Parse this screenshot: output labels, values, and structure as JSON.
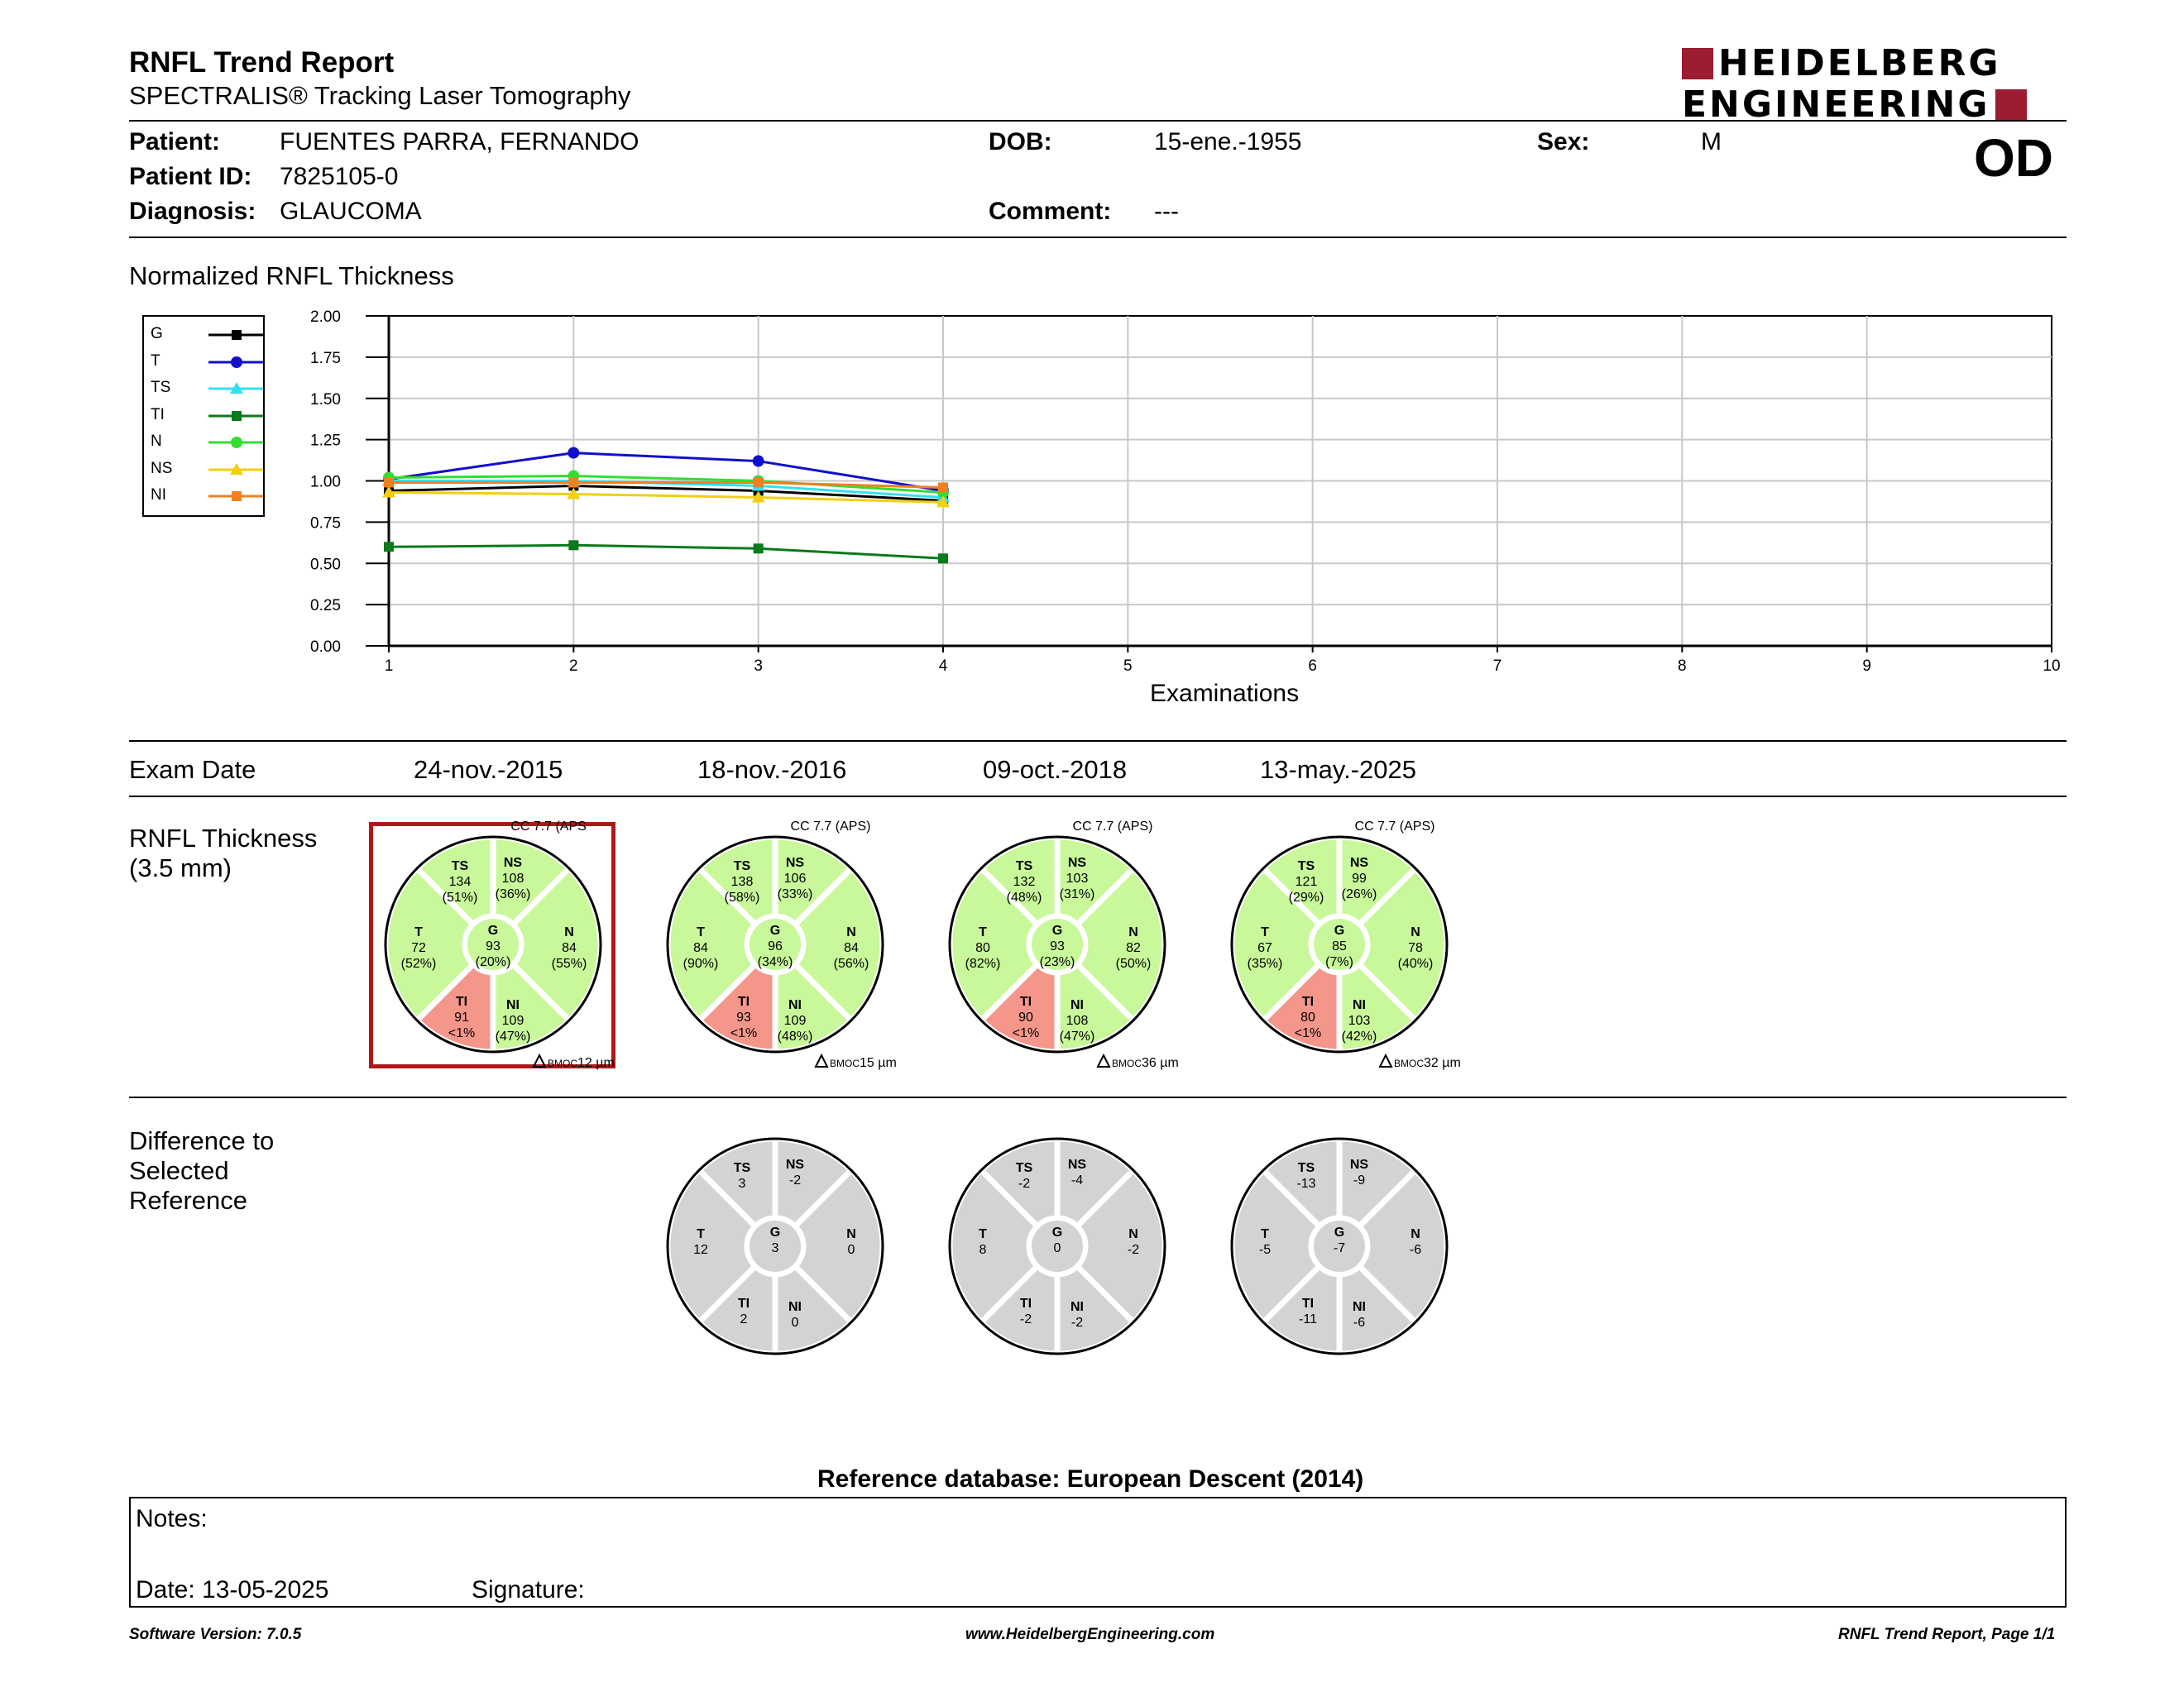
{
  "header": {
    "title": "RNFL Trend Report",
    "subtitle": "SPECTRALIS® Tracking Laser Tomography",
    "logo_line1": "HEIDELBERG",
    "logo_line2": "ENGINEERING",
    "eye": "OD"
  },
  "patient": {
    "patient_label": "Patient:",
    "patient_value": "FUENTES PARRA, FERNANDO",
    "id_label": "Patient ID:",
    "id_value": "7825105-0",
    "diagnosis_label": "Diagnosis:",
    "diagnosis_value": "GLAUCOMA",
    "dob_label": "DOB:",
    "dob_value": "15-ene.-1955",
    "comment_label": "Comment:",
    "comment_value": "---",
    "sex_label": "Sex:",
    "sex_value": "M"
  },
  "chart_section_title": "Normalized RNFL Thickness",
  "chart_data": {
    "type": "line",
    "xlabel": "Examinations",
    "x_ticks": [
      1,
      2,
      3,
      4,
      5,
      6,
      7,
      8,
      9,
      10
    ],
    "y_ticks": [
      "0.00",
      "0.25",
      "0.50",
      "0.75",
      "1.00",
      "1.25",
      "1.50",
      "1.75",
      "2.00"
    ],
    "xlim": [
      1,
      10
    ],
    "ylim": [
      0,
      2
    ],
    "grid": true,
    "legend_position": "left",
    "x": [
      1,
      2,
      3,
      4
    ],
    "series": [
      {
        "name": "G",
        "color": "#000000",
        "marker": "square",
        "values": [
          0.94,
          0.97,
          0.94,
          0.88
        ]
      },
      {
        "name": "T",
        "color": "#1010cc",
        "marker": "circle",
        "values": [
          1.01,
          1.17,
          1.12,
          0.94
        ]
      },
      {
        "name": "TS",
        "color": "#33e0f0",
        "marker": "triangle",
        "values": [
          1.0,
          1.0,
          0.97,
          0.9
        ]
      },
      {
        "name": "TI",
        "color": "#0a7a1a",
        "marker": "square",
        "values": [
          0.6,
          0.61,
          0.59,
          0.53
        ]
      },
      {
        "name": "N",
        "color": "#33dd33",
        "marker": "circle",
        "values": [
          1.02,
          1.03,
          1.0,
          0.93
        ]
      },
      {
        "name": "NS",
        "color": "#f0d010",
        "marker": "triangle",
        "values": [
          0.93,
          0.92,
          0.9,
          0.87
        ]
      },
      {
        "name": "NI",
        "color": "#f08020",
        "marker": "square",
        "values": [
          0.99,
          0.99,
          0.99,
          0.96
        ]
      }
    ]
  },
  "exam_date_label": "Exam Date",
  "exam_dates": [
    "24-nov.-2015",
    "18-nov.-2016",
    "09-oct.-2018",
    "13-may.-2025"
  ],
  "rnfl_label_line1": "RNFL Thickness",
  "rnfl_label_line2": "(3.5 mm)",
  "diff_label_line1": "Difference to",
  "diff_label_line2": "Selected",
  "diff_label_line3": "Reference",
  "colors": {
    "normal": "#c8f89a",
    "abnormal": "#f5968a",
    "difference": "#d3d3d3",
    "selected_border": "#b01818"
  },
  "selected_exam_index": 0,
  "thickness": [
    {
      "cc": "CC 7.7 (APS",
      "bmo_value": "12 µm",
      "TS": [
        "134",
        "(51%)"
      ],
      "NS": [
        "108",
        "(36%)"
      ],
      "T": [
        "72",
        "(52%)"
      ],
      "G": [
        "93",
        "(20%)"
      ],
      "N": [
        "84",
        "(55%)"
      ],
      "TI": [
        "91",
        "<1%"
      ],
      "NI": [
        "109",
        "(47%)"
      ]
    },
    {
      "cc": "CC 7.7 (APS)",
      "bmo_value": "15 µm",
      "TS": [
        "138",
        "(58%)"
      ],
      "NS": [
        "106",
        "(33%)"
      ],
      "T": [
        "84",
        "(90%)"
      ],
      "G": [
        "96",
        "(34%)"
      ],
      "N": [
        "84",
        "(56%)"
      ],
      "TI": [
        "93",
        "<1%"
      ],
      "NI": [
        "109",
        "(48%)"
      ]
    },
    {
      "cc": "CC 7.7 (APS)",
      "bmo_value": "36 µm",
      "TS": [
        "132",
        "(48%)"
      ],
      "NS": [
        "103",
        "(31%)"
      ],
      "T": [
        "80",
        "(82%)"
      ],
      "G": [
        "93",
        "(23%)"
      ],
      "N": [
        "82",
        "(50%)"
      ],
      "TI": [
        "90",
        "<1%"
      ],
      "NI": [
        "108",
        "(47%)"
      ]
    },
    {
      "cc": "CC 7.7 (APS)",
      "bmo_value": "32 µm",
      "TS": [
        "121",
        "(29%)"
      ],
      "NS": [
        "99",
        "(26%)"
      ],
      "T": [
        "67",
        "(35%)"
      ],
      "G": [
        "85",
        "(7%)"
      ],
      "N": [
        "78",
        "(40%)"
      ],
      "TI": [
        "80",
        "<1%"
      ],
      "NI": [
        "103",
        "(42%)"
      ]
    }
  ],
  "bmo_prefix": "BMOC",
  "differences": [
    null,
    {
      "TS": "3",
      "NS": "-2",
      "T": "12",
      "G": "3",
      "N": "0",
      "TI": "2",
      "NI": "0"
    },
    {
      "TS": "-2",
      "NS": "-4",
      "T": "8",
      "G": "0",
      "N": "-2",
      "TI": "-2",
      "NI": "-2"
    },
    {
      "TS": "-13",
      "NS": "-9",
      "T": "-5",
      "G": "-7",
      "N": "-6",
      "TI": "-11",
      "NI": "-6"
    }
  ],
  "reference_db": "Reference database: European Descent (2014)",
  "notes": {
    "notes_label": "Notes:",
    "date_label": "Date: 13-05-2025",
    "signature_label": "Signature:"
  },
  "footer": {
    "software": "Software Version: 7.0.5",
    "website": "www.HeidelbergEngineering.com",
    "page": "RNFL Trend Report, Page 1/1"
  }
}
